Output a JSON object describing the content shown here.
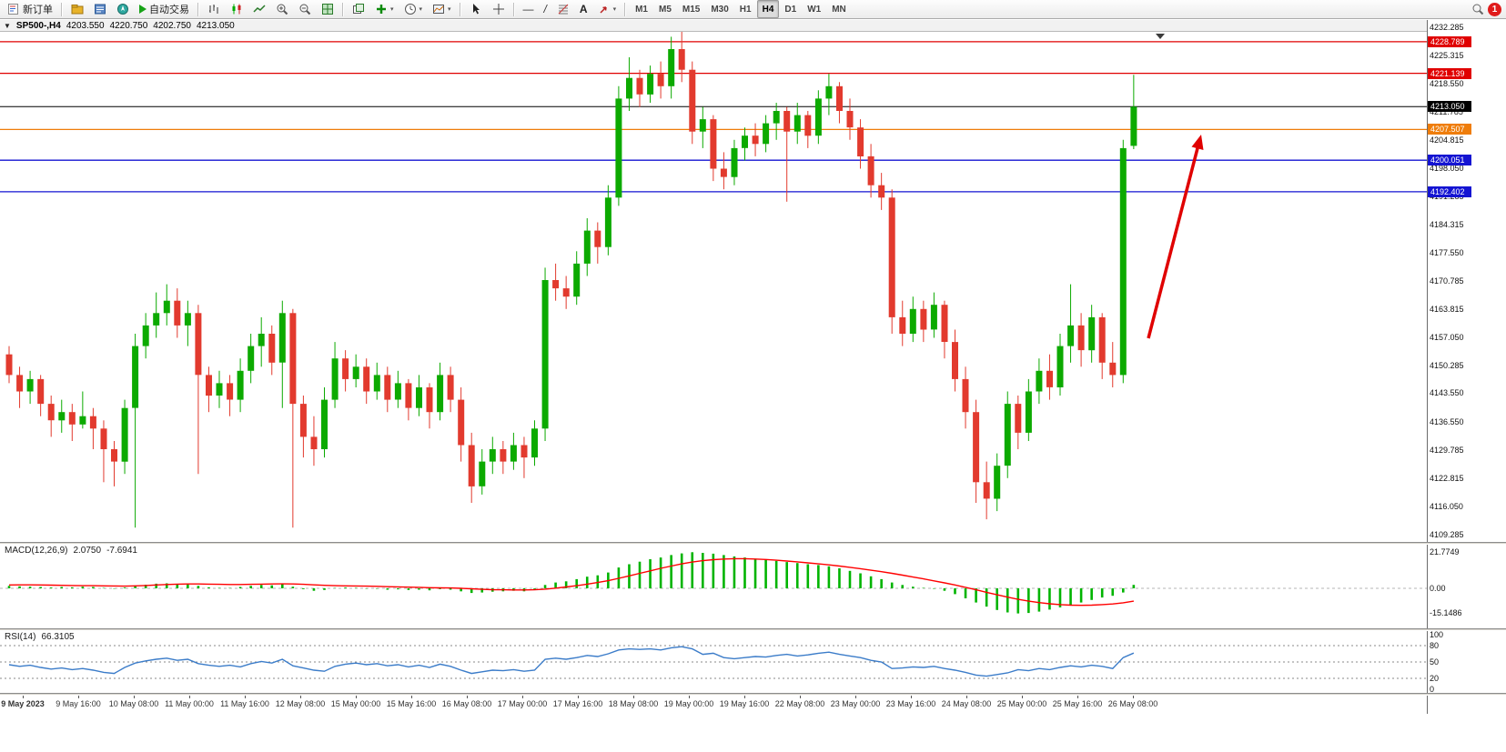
{
  "toolbar": {
    "new_order": "新订单",
    "auto_trading": "自动交易",
    "timeframes": [
      "M1",
      "M5",
      "M15",
      "M30",
      "H1",
      "H4",
      "D1",
      "W1",
      "MN"
    ],
    "active_timeframe": "H4",
    "notification_count": "1"
  },
  "icons": {
    "dropdown_caret": "▾",
    "chart_selector": "▼",
    "text_tool": "A",
    "hline_tool": "—",
    "trendline_tool": "/"
  },
  "chart_header": {
    "symbol": "SP500-,H4",
    "open": "4203.550",
    "high": "4220.750",
    "low": "4202.750",
    "close": "4213.050"
  },
  "price_axis": {
    "labels": [
      "4232.285",
      "4225.315",
      "4218.550",
      "4211.785",
      "4204.815",
      "4198.050",
      "4191.285",
      "4184.315",
      "4177.550",
      "4170.785",
      "4163.815",
      "4157.050",
      "4150.285",
      "4143.550",
      "4136.550",
      "4129.785",
      "4122.815",
      "4116.050",
      "4109.285"
    ]
  },
  "main_chart": {
    "levels": [
      {
        "price": "4228.789",
        "value": 4228.789,
        "color": "#e00000",
        "style": "line"
      },
      {
        "price": "4221.139",
        "value": 4221.139,
        "color": "#e00000",
        "style": "line"
      },
      {
        "price": "4213.050",
        "value": 4213.05,
        "color": "#000000",
        "style": "current-price"
      },
      {
        "price": "4207.507",
        "value": 4207.507,
        "color": "#ef7d0a",
        "style": "line"
      },
      {
        "price": "4200.051",
        "value": 4200.051,
        "color": "#1414d2",
        "style": "line"
      },
      {
        "price": "4192.402",
        "value": 4192.402,
        "color": "#1414d2",
        "style": "line"
      }
    ]
  },
  "chart_data": {
    "type": "candlestick",
    "symbol": "SP500-",
    "timeframe": "H4",
    "bull_color": "#0caa00",
    "bear_color": "#e23a2e",
    "price_range": {
      "top": 4232.285,
      "bottom": 4109.285
    },
    "candles": [
      [
        4153,
        4155,
        4146,
        4148
      ],
      [
        4148,
        4150,
        4140,
        4144
      ],
      [
        4144,
        4149,
        4141,
        4147
      ],
      [
        4147,
        4148,
        4138,
        4141
      ],
      [
        4141,
        4143,
        4133,
        4137
      ],
      [
        4137,
        4142,
        4134,
        4139
      ],
      [
        4139,
        4141,
        4132,
        4136
      ],
      [
        4136,
        4144,
        4135,
        4138
      ],
      [
        4138,
        4140,
        4130,
        4135
      ],
      [
        4135,
        4137,
        4122,
        4130
      ],
      [
        4130,
        4132,
        4121,
        4127
      ],
      [
        4127,
        4142,
        4124,
        4140
      ],
      [
        4140,
        4158,
        4111,
        4155
      ],
      [
        4155,
        4163,
        4152,
        4160
      ],
      [
        4160,
        4168,
        4157,
        4163
      ],
      [
        4163,
        4170,
        4160,
        4166
      ],
      [
        4166,
        4169,
        4157,
        4160
      ],
      [
        4160,
        4166,
        4155,
        4163
      ],
      [
        4163,
        4165,
        4124,
        4148
      ],
      [
        4148,
        4150,
        4139,
        4143
      ],
      [
        4143,
        4149,
        4140,
        4146
      ],
      [
        4146,
        4148,
        4138,
        4142
      ],
      [
        4142,
        4152,
        4139,
        4149
      ],
      [
        4149,
        4158,
        4146,
        4155
      ],
      [
        4155,
        4162,
        4150,
        4158
      ],
      [
        4158,
        4160,
        4148,
        4151
      ],
      [
        4151,
        4166,
        4140,
        4163
      ],
      [
        4163,
        4164,
        4111,
        4141
      ],
      [
        4141,
        4143,
        4128,
        4133
      ],
      [
        4133,
        4138,
        4126,
        4130
      ],
      [
        4130,
        4145,
        4128,
        4142
      ],
      [
        4142,
        4156,
        4140,
        4152
      ],
      [
        4152,
        4154,
        4144,
        4147
      ],
      [
        4147,
        4153,
        4145,
        4150
      ],
      [
        4150,
        4152,
        4141,
        4144
      ],
      [
        4144,
        4151,
        4142,
        4148
      ],
      [
        4148,
        4150,
        4139,
        4142
      ],
      [
        4142,
        4149,
        4140,
        4146
      ],
      [
        4146,
        4147,
        4137,
        4140
      ],
      [
        4140,
        4148,
        4138,
        4145
      ],
      [
        4145,
        4146,
        4135,
        4139
      ],
      [
        4139,
        4151,
        4137,
        4148
      ],
      [
        4148,
        4150,
        4139,
        4142
      ],
      [
        4142,
        4145,
        4127,
        4131
      ],
      [
        4131,
        4134,
        4117,
        4121
      ],
      [
        4121,
        4130,
        4119,
        4127
      ],
      [
        4127,
        4133,
        4124,
        4130
      ],
      [
        4130,
        4132,
        4124,
        4127
      ],
      [
        4127,
        4134,
        4125,
        4131
      ],
      [
        4131,
        4133,
        4123,
        4128
      ],
      [
        4128,
        4137,
        4126,
        4135
      ],
      [
        4135,
        4174,
        4132,
        4171
      ],
      [
        4171,
        4175,
        4166,
        4169
      ],
      [
        4169,
        4172,
        4164,
        4167
      ],
      [
        4167,
        4178,
        4165,
        4175
      ],
      [
        4175,
        4186,
        4172,
        4183
      ],
      [
        4183,
        4185,
        4175,
        4179
      ],
      [
        4179,
        4194,
        4177,
        4191
      ],
      [
        4191,
        4218,
        4189,
        4215
      ],
      [
        4215,
        4225,
        4212,
        4220
      ],
      [
        4220,
        4222,
        4213,
        4216
      ],
      [
        4216,
        4223,
        4214,
        4221
      ],
      [
        4221,
        4224,
        4215,
        4218
      ],
      [
        4218,
        4230,
        4215,
        4227
      ],
      [
        4227,
        4232,
        4219,
        4222
      ],
      [
        4222,
        4224,
        4204,
        4207
      ],
      [
        4207,
        4213,
        4203,
        4210
      ],
      [
        4210,
        4211,
        4195,
        4198
      ],
      [
        4198,
        4202,
        4193,
        4196
      ],
      [
        4196,
        4205,
        4194,
        4203
      ],
      [
        4203,
        4208,
        4200,
        4206
      ],
      [
        4206,
        4209,
        4201,
        4204
      ],
      [
        4204,
        4211,
        4202,
        4209
      ],
      [
        4209,
        4214,
        4205,
        4212
      ],
      [
        4212,
        4213,
        4190,
        4207
      ],
      [
        4207,
        4214,
        4204,
        4211
      ],
      [
        4211,
        4212,
        4203,
        4206
      ],
      [
        4206,
        4217,
        4204,
        4215
      ],
      [
        4215,
        4221,
        4211,
        4218
      ],
      [
        4218,
        4219,
        4209,
        4212
      ],
      [
        4212,
        4215,
        4205,
        4208
      ],
      [
        4208,
        4210,
        4198,
        4201
      ],
      [
        4201,
        4204,
        4191,
        4194
      ],
      [
        4194,
        4197,
        4188,
        4191
      ],
      [
        4191,
        4193,
        4158,
        4162
      ],
      [
        4162,
        4166,
        4155,
        4158
      ],
      [
        4158,
        4167,
        4156,
        4164
      ],
      [
        4164,
        4166,
        4156,
        4159
      ],
      [
        4159,
        4168,
        4157,
        4165
      ],
      [
        4165,
        4166,
        4152,
        4156
      ],
      [
        4156,
        4159,
        4144,
        4147
      ],
      [
        4147,
        4150,
        4135,
        4139
      ],
      [
        4139,
        4142,
        4117,
        4122
      ],
      [
        4122,
        4127,
        4113,
        4118
      ],
      [
        4118,
        4129,
        4115,
        4126
      ],
      [
        4126,
        4144,
        4123,
        4141
      ],
      [
        4141,
        4143,
        4130,
        4134
      ],
      [
        4134,
        4147,
        4132,
        4144
      ],
      [
        4144,
        4152,
        4141,
        4149
      ],
      [
        4149,
        4153,
        4142,
        4145
      ],
      [
        4145,
        4158,
        4143,
        4155
      ],
      [
        4155,
        4170,
        4151,
        4160
      ],
      [
        4160,
        4163,
        4150,
        4154
      ],
      [
        4154,
        4165,
        4151,
        4162
      ],
      [
        4162,
        4163,
        4147,
        4151
      ],
      [
        4151,
        4156,
        4145,
        4148
      ],
      [
        4148,
        4205,
        4146,
        4203
      ],
      [
        4203.55,
        4220.75,
        4202.75,
        4213.05
      ]
    ],
    "macd": {
      "label": "MACD(12,26,9)",
      "value_main": "2.0750",
      "value_signal": "-7.6941",
      "scale_labels": [
        "21.7749",
        "0.00",
        "-15.1486"
      ],
      "histogram_color": "#00b400",
      "signal_color": "#ff0000",
      "histogram": [
        1.5,
        1.2,
        1.0,
        0.8,
        0.5,
        0.8,
        0.6,
        1.0,
        0.8,
        0.3,
        -0.2,
        0.5,
        1.5,
        2.2,
        2.8,
        3.0,
        2.6,
        2.4,
        1.5,
        0.6,
        0.3,
        0.2,
        0.8,
        1.5,
        2.0,
        1.8,
        2.5,
        1.0,
        -0.5,
        -1.5,
        -1.0,
        0.2,
        0.5,
        0.3,
        -0.2,
        -0.3,
        -0.8,
        -0.6,
        -1.0,
        -0.8,
        -1.2,
        -0.5,
        -0.8,
        -1.8,
        -2.8,
        -2.5,
        -2.0,
        -1.8,
        -1.5,
        -1.8,
        -0.5,
        2.0,
        3.5,
        4.2,
        5.5,
        7.0,
        7.8,
        9.5,
        12.5,
        14.5,
        16.0,
        17.5,
        18.5,
        20.0,
        21.0,
        21.7,
        21.3,
        20.8,
        20.0,
        19.2,
        18.5,
        17.8,
        17.2,
        16.5,
        15.8,
        15.2,
        14.5,
        14.0,
        13.2,
        12.0,
        10.5,
        9.0,
        7.2,
        5.5,
        3.5,
        2.0,
        1.0,
        0.3,
        -0.3,
        -1.5,
        -3.5,
        -6.0,
        -8.5,
        -11.0,
        -13.0,
        -14.5,
        -15.1,
        -14.8,
        -14.0,
        -12.8,
        -11.5,
        -10.0,
        -8.5,
        -7.0,
        -5.5,
        -4.5,
        -2.5,
        2.1
      ],
      "signal": [
        2.0,
        2.1,
        2.1,
        2.0,
        1.9,
        1.8,
        1.7,
        1.6,
        1.6,
        1.5,
        1.4,
        1.3,
        1.5,
        1.7,
        2.0,
        2.3,
        2.5,
        2.6,
        2.6,
        2.5,
        2.4,
        2.3,
        2.3,
        2.4,
        2.5,
        2.6,
        2.7,
        2.6,
        2.4,
        2.1,
        1.8,
        1.6,
        1.5,
        1.4,
        1.3,
        1.2,
        1.0,
        0.9,
        0.7,
        0.6,
        0.4,
        0.3,
        0.2,
        0.0,
        -0.3,
        -0.6,
        -0.8,
        -0.9,
        -1.0,
        -1.0,
        -0.9,
        -0.5,
        0.1,
        0.8,
        1.6,
        2.5,
        3.5,
        4.6,
        6.0,
        7.5,
        9.0,
        10.5,
        12.0,
        13.4,
        14.7,
        15.8,
        16.6,
        17.2,
        17.6,
        17.8,
        17.8,
        17.6,
        17.3,
        16.9,
        16.4,
        15.9,
        15.3,
        14.7,
        14.1,
        13.4,
        12.6,
        11.8,
        10.9,
        10.0,
        9.0,
        7.9,
        6.8,
        5.7,
        4.5,
        3.3,
        2.0,
        0.6,
        -0.9,
        -2.4,
        -3.9,
        -5.3,
        -6.6,
        -7.7,
        -8.6,
        -9.3,
        -9.8,
        -10.1,
        -10.2,
        -10.1,
        -9.8,
        -9.4,
        -8.7,
        -7.7
      ]
    },
    "rsi": {
      "label": "RSI(14)",
      "value": "66.3105",
      "scale_labels": [
        "100",
        "80",
        "50",
        "20",
        "0"
      ],
      "levels": [
        80,
        50,
        20
      ],
      "line_color": "#3b7cc9",
      "values": [
        45,
        42,
        44,
        40,
        37,
        39,
        36,
        38,
        35,
        31,
        29,
        40,
        48,
        52,
        55,
        57,
        53,
        55,
        47,
        44,
        42,
        44,
        41,
        47,
        51,
        48,
        55,
        43,
        39,
        35,
        33,
        42,
        46,
        48,
        45,
        47,
        43,
        45,
        41,
        44,
        40,
        46,
        42,
        35,
        29,
        32,
        35,
        34,
        36,
        33,
        35,
        55,
        57,
        55,
        58,
        62,
        60,
        65,
        72,
        74,
        73,
        74,
        72,
        76,
        78,
        74,
        64,
        66,
        58,
        56,
        58,
        60,
        59,
        62,
        64,
        61,
        63,
        66,
        68,
        64,
        61,
        58,
        53,
        50,
        38,
        39,
        41,
        40,
        42,
        38,
        35,
        31,
        26,
        24,
        27,
        30,
        36,
        34,
        38,
        36,
        40,
        43,
        41,
        44,
        42,
        38,
        58,
        66.31
      ]
    },
    "time_labels": [
      "9 May 2023",
      "9 May 16:00",
      "10 May 08:00",
      "11 May 00:00",
      "11 May 16:00",
      "12 May 08:00",
      "15 May 00:00",
      "15 May 16:00",
      "16 May 08:00",
      "17 May 00:00",
      "17 May 16:00",
      "18 May 08:00",
      "19 May 00:00",
      "19 May 16:00",
      "22 May 08:00",
      "23 May 00:00",
      "23 May 16:00",
      "24 May 08:00",
      "25 May 00:00",
      "25 May 16:00",
      "26 May 08:00"
    ]
  },
  "annotations": {
    "trend_arrow_color": "#e00000"
  }
}
